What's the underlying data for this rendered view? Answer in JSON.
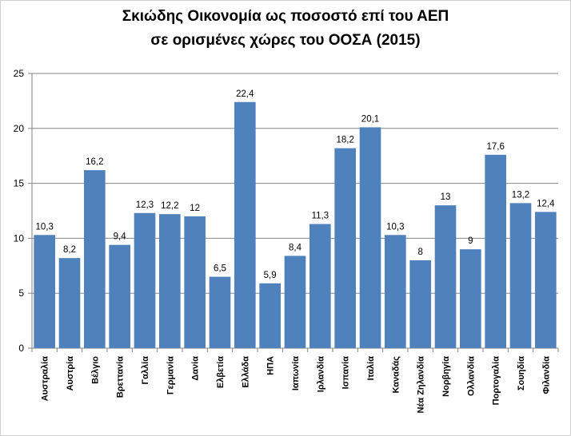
{
  "chart_data": {
    "type": "bar",
    "title_lines": [
      "Σκιώδης Οικονομία ως ποσοστό επί του ΑΕΠ",
      "σε ορισμένες χώρες του ΟΟΣΑ (2015)"
    ],
    "categories": [
      "Αυστραλία",
      "Αυστρία",
      "Βέλγιο",
      "Βρεττανία",
      "Γαλλία",
      "Γερμανία",
      "Δανία",
      "Ελβετία",
      "Ελλάδα",
      "ΗΠΑ",
      "Ιαπωνία",
      "Ιρλανδία",
      "Ισπανία",
      "Ιταλία",
      "Καναδάς",
      "Νέα Ζηλανδία",
      "Νορβηγία",
      "Ολλανδία",
      "Πορτογαλία",
      "Σουηδία",
      "Φιλανδία"
    ],
    "values": [
      10.3,
      8.2,
      16.2,
      9.4,
      12.3,
      12.2,
      12,
      6.5,
      22.4,
      5.9,
      8.4,
      11.3,
      18.2,
      20.1,
      10.3,
      8,
      13,
      9,
      17.6,
      13.2,
      12.4
    ],
    "value_labels": [
      "10,3",
      "8,2",
      "16,2",
      "9,4",
      "12,3",
      "12,2",
      "12",
      "6,5",
      "22,4",
      "5,9",
      "8,4",
      "11,3",
      "18,2",
      "20,1",
      "10,3",
      "8",
      "13",
      "9",
      "17,6",
      "13,2",
      "12,4"
    ],
    "ylim": [
      0,
      25
    ],
    "yticks": [
      "0",
      "5",
      "10",
      "15",
      "20",
      "25"
    ],
    "grid": true,
    "bar_color": "#4f81bd",
    "xlabel": "",
    "ylabel": ""
  }
}
